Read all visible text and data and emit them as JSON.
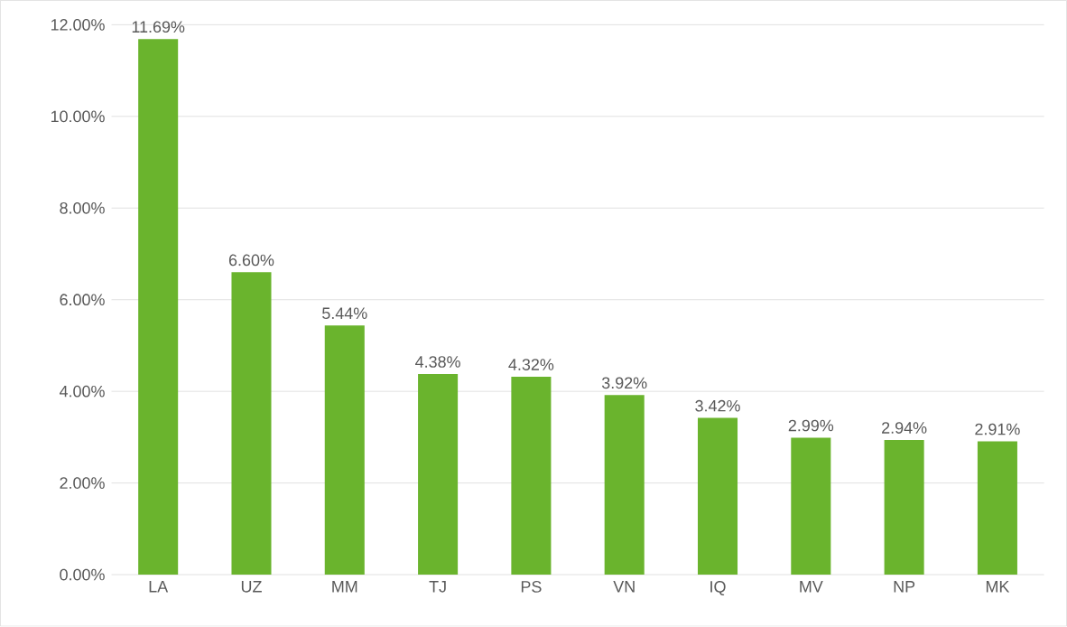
{
  "chart_data": {
    "type": "bar",
    "categories": [
      "LA",
      "UZ",
      "MM",
      "TJ",
      "PS",
      "VN",
      "IQ",
      "MV",
      "NP",
      "MK"
    ],
    "values": [
      11.69,
      6.6,
      5.44,
      4.38,
      4.32,
      3.92,
      3.42,
      2.99,
      2.94,
      2.91
    ],
    "value_labels": [
      "11.69%",
      "6.60%",
      "5.44%",
      "4.38%",
      "4.32%",
      "3.92%",
      "3.42%",
      "2.99%",
      "2.94%",
      "2.91%"
    ],
    "color": "#6ab42d",
    "ylim": [
      0,
      12
    ],
    "yticks": [
      {
        "value": 0,
        "label": "0.00%"
      },
      {
        "value": 2,
        "label": "2.00%"
      },
      {
        "value": 4,
        "label": "4.00%"
      },
      {
        "value": 6,
        "label": "6.00%"
      },
      {
        "value": 8,
        "label": "8.00%"
      },
      {
        "value": 10,
        "label": "10.00%"
      },
      {
        "value": 12,
        "label": "12.00%"
      }
    ],
    "grid": "y"
  }
}
